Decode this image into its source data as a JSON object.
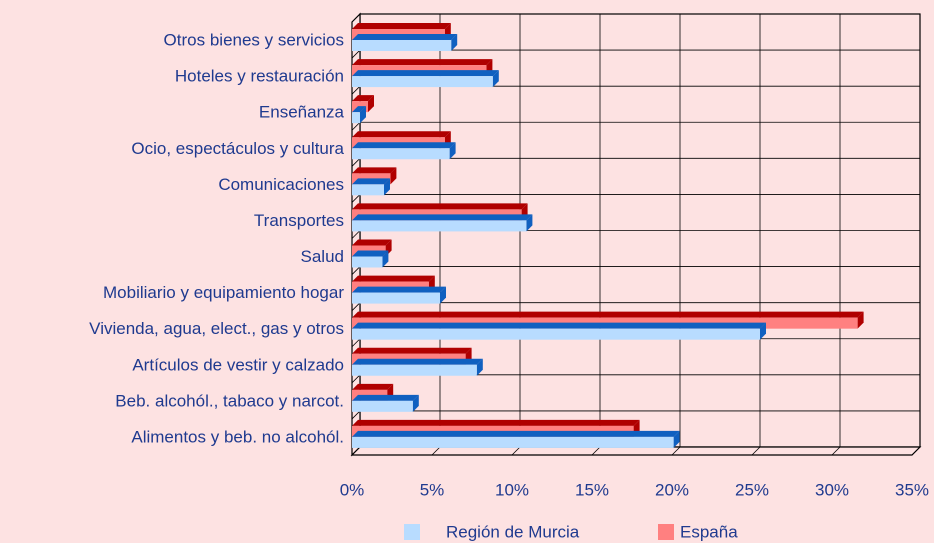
{
  "chart_data": {
    "type": "bar",
    "orientation": "horizontal",
    "three_d": true,
    "categories": [
      "Otros bienes y servicios",
      "Hoteles y restauración",
      "Enseñanza",
      "Ocio, espectáculos y cultura",
      "Comunicaciones",
      "Transportes",
      "Salud",
      "Mobiliario y equipamiento hogar",
      "Vivienda, agua, elect., gas y otros",
      "Artículos de vestir y calzado",
      "Beb. alcohól., tabaco y narcot.",
      "Alimentos y beb. no alcohól."
    ],
    "series": [
      {
        "name": "Región de Murcia",
        "color": "#b8dcff",
        "side_color": "#1060c0",
        "values": [
          6.2,
          8.8,
          0.5,
          6.1,
          2.0,
          10.9,
          1.9,
          5.5,
          25.5,
          7.8,
          3.8,
          20.1
        ]
      },
      {
        "name": "España",
        "color": "#ff8080",
        "side_color": "#b00000",
        "values": [
          5.8,
          8.4,
          1.0,
          5.8,
          2.4,
          10.6,
          2.1,
          4.8,
          31.6,
          7.1,
          2.2,
          17.6
        ]
      }
    ],
    "xlim": [
      0,
      35
    ],
    "xticks": [
      {
        "value": 0,
        "label": "0%"
      },
      {
        "value": 5,
        "label": "5%"
      },
      {
        "value": 10,
        "label": "10%"
      },
      {
        "value": 15,
        "label": "15%"
      },
      {
        "value": 20,
        "label": "20%"
      },
      {
        "value": 25,
        "label": "25%"
      },
      {
        "value": 30,
        "label": "30%"
      },
      {
        "value": 35,
        "label": "35%"
      }
    ],
    "grid": true,
    "legend": "bottom"
  }
}
